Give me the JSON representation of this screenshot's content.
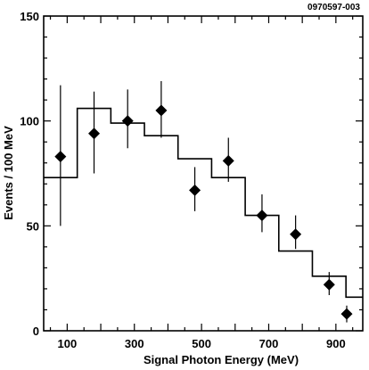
{
  "chart_data": {
    "type": "scatter",
    "figure_id": "0970597-003",
    "xlabel": "Signal  Photon  Energy  (MeV)",
    "ylabel": "Events / 100 MeV",
    "xlim": [
      30,
      980
    ],
    "ylim": [
      0,
      150
    ],
    "x_ticks": [
      100,
      300,
      500,
      700,
      900
    ],
    "y_ticks": [
      0,
      50,
      100,
      150
    ],
    "grid": false,
    "legend": "none",
    "points": [
      {
        "x": 80,
        "y": 83,
        "err_low": 33,
        "err_high": 34
      },
      {
        "x": 180,
        "y": 94,
        "err_low": 19,
        "err_high": 20
      },
      {
        "x": 280,
        "y": 100,
        "err_low": 13,
        "err_high": 15
      },
      {
        "x": 380,
        "y": 105,
        "err_low": 13,
        "err_high": 14
      },
      {
        "x": 480,
        "y": 67,
        "err_low": 10,
        "err_high": 11
      },
      {
        "x": 580,
        "y": 81,
        "err_low": 10,
        "err_high": 11
      },
      {
        "x": 680,
        "y": 55,
        "err_low": 8,
        "err_high": 10
      },
      {
        "x": 780,
        "y": 46,
        "err_low": 7,
        "err_high": 9
      },
      {
        "x": 880,
        "y": 22,
        "err_low": 5,
        "err_high": 6
      },
      {
        "x": 980,
        "y": 8,
        "err_low": 4,
        "err_high": 4
      }
    ],
    "histogram": {
      "edges": [
        30,
        130,
        230,
        330,
        430,
        530,
        630,
        730,
        830,
        930,
        980
      ],
      "values": [
        73,
        106,
        99,
        93,
        82,
        73,
        55,
        38,
        26,
        16
      ]
    }
  }
}
